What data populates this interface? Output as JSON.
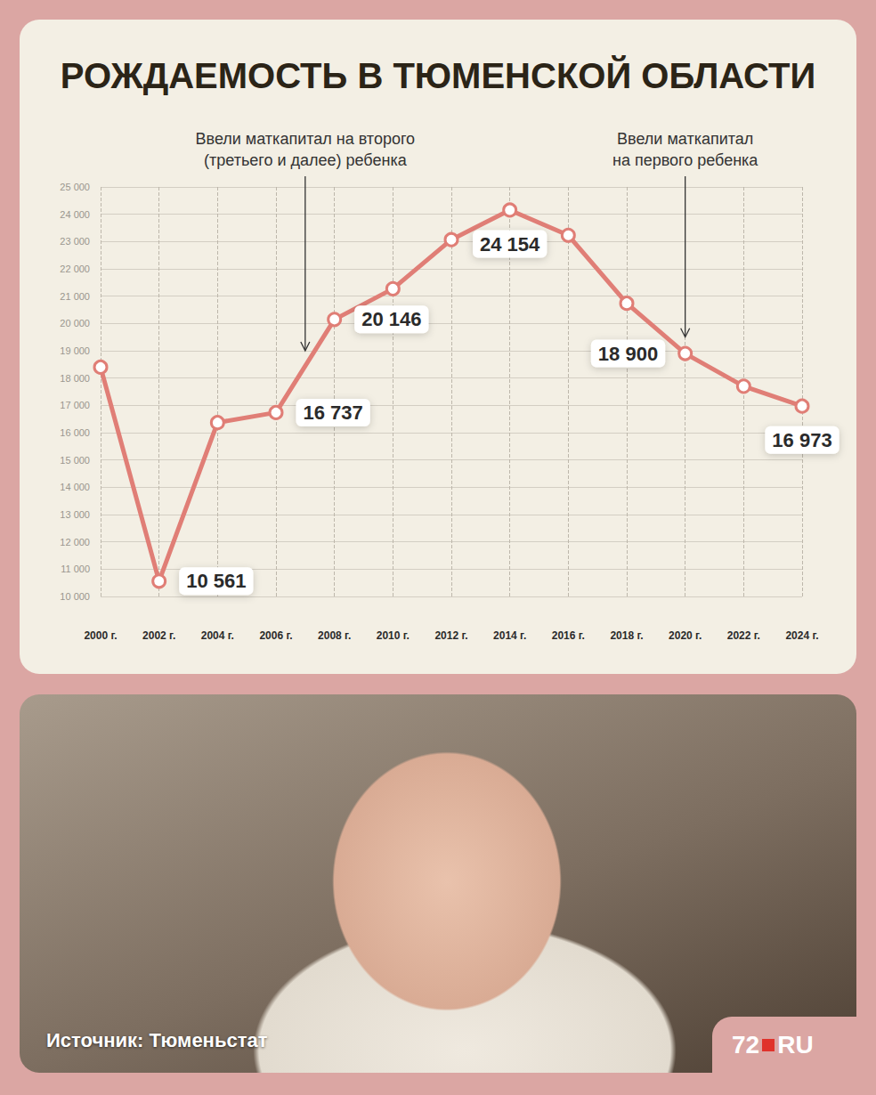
{
  "chart_data": {
    "type": "line",
    "title": "РОЖДАЕМОСТЬ В ТЮМЕНСКОЙ ОБЛАСТИ",
    "x": [
      2000,
      2002,
      2004,
      2006,
      2008,
      2010,
      2012,
      2014,
      2016,
      2018,
      2020,
      2022,
      2024
    ],
    "values": [
      18400,
      10561,
      16370,
      16737,
      20146,
      21270,
      23070,
      24154,
      23230,
      20740,
      18900,
      17700,
      16973
    ],
    "value_labels": [
      null,
      "10 561",
      null,
      "16 737",
      "20 146",
      null,
      null,
      "24 154",
      null,
      null,
      "18 900",
      null,
      "16 973"
    ],
    "color": "#e07e76",
    "marker": "circle",
    "data_labels": true,
    "grid": true,
    "xlim": [
      2000,
      2024
    ],
    "xticks": [
      {
        "value": 2000,
        "label": "2000 г."
      },
      {
        "value": 2002,
        "label": "2002 г."
      },
      {
        "value": 2004,
        "label": "2004 г."
      },
      {
        "value": 2006,
        "label": "2006 г."
      },
      {
        "value": 2008,
        "label": "2008 г."
      },
      {
        "value": 2010,
        "label": "2010 г."
      },
      {
        "value": 2012,
        "label": "2012 г."
      },
      {
        "value": 2014,
        "label": "2014 г."
      },
      {
        "value": 2016,
        "label": "2016 г."
      },
      {
        "value": 2018,
        "label": "2018 г."
      },
      {
        "value": 2020,
        "label": "2020 г."
      },
      {
        "value": 2022,
        "label": "2022 г."
      },
      {
        "value": 2024,
        "label": "2024 г."
      }
    ],
    "ylim": [
      10000,
      25000
    ],
    "yticks": [
      {
        "value": 10000,
        "label": "10 000"
      },
      {
        "value": 11000,
        "label": "11 000"
      },
      {
        "value": 12000,
        "label": "12 000"
      },
      {
        "value": 13000,
        "label": "13 000"
      },
      {
        "value": 14000,
        "label": "14 000"
      },
      {
        "value": 15000,
        "label": "15 000"
      },
      {
        "value": 16000,
        "label": "16 000"
      },
      {
        "value": 17000,
        "label": "17 000"
      },
      {
        "value": 18000,
        "label": "18 000"
      },
      {
        "value": 19000,
        "label": "19 000"
      },
      {
        "value": 20000,
        "label": "20 000"
      },
      {
        "value": 21000,
        "label": "21 000"
      },
      {
        "value": 22000,
        "label": "22 000"
      },
      {
        "value": 23000,
        "label": "23 000"
      },
      {
        "value": 24000,
        "label": "24 000"
      },
      {
        "value": 25000,
        "label": "25 000"
      }
    ],
    "annotations": [
      {
        "text": "Ввели маткапитал на второго\n(третьего и далее) ребенка",
        "x": 2007,
        "y": 19000
      },
      {
        "text": "Ввели маткапитал\nна первого ребенка",
        "x": 2020,
        "y": 19500
      }
    ]
  },
  "footer": {
    "source": "Источник: Тюменьстат",
    "logo": [
      "72",
      "RU"
    ]
  }
}
